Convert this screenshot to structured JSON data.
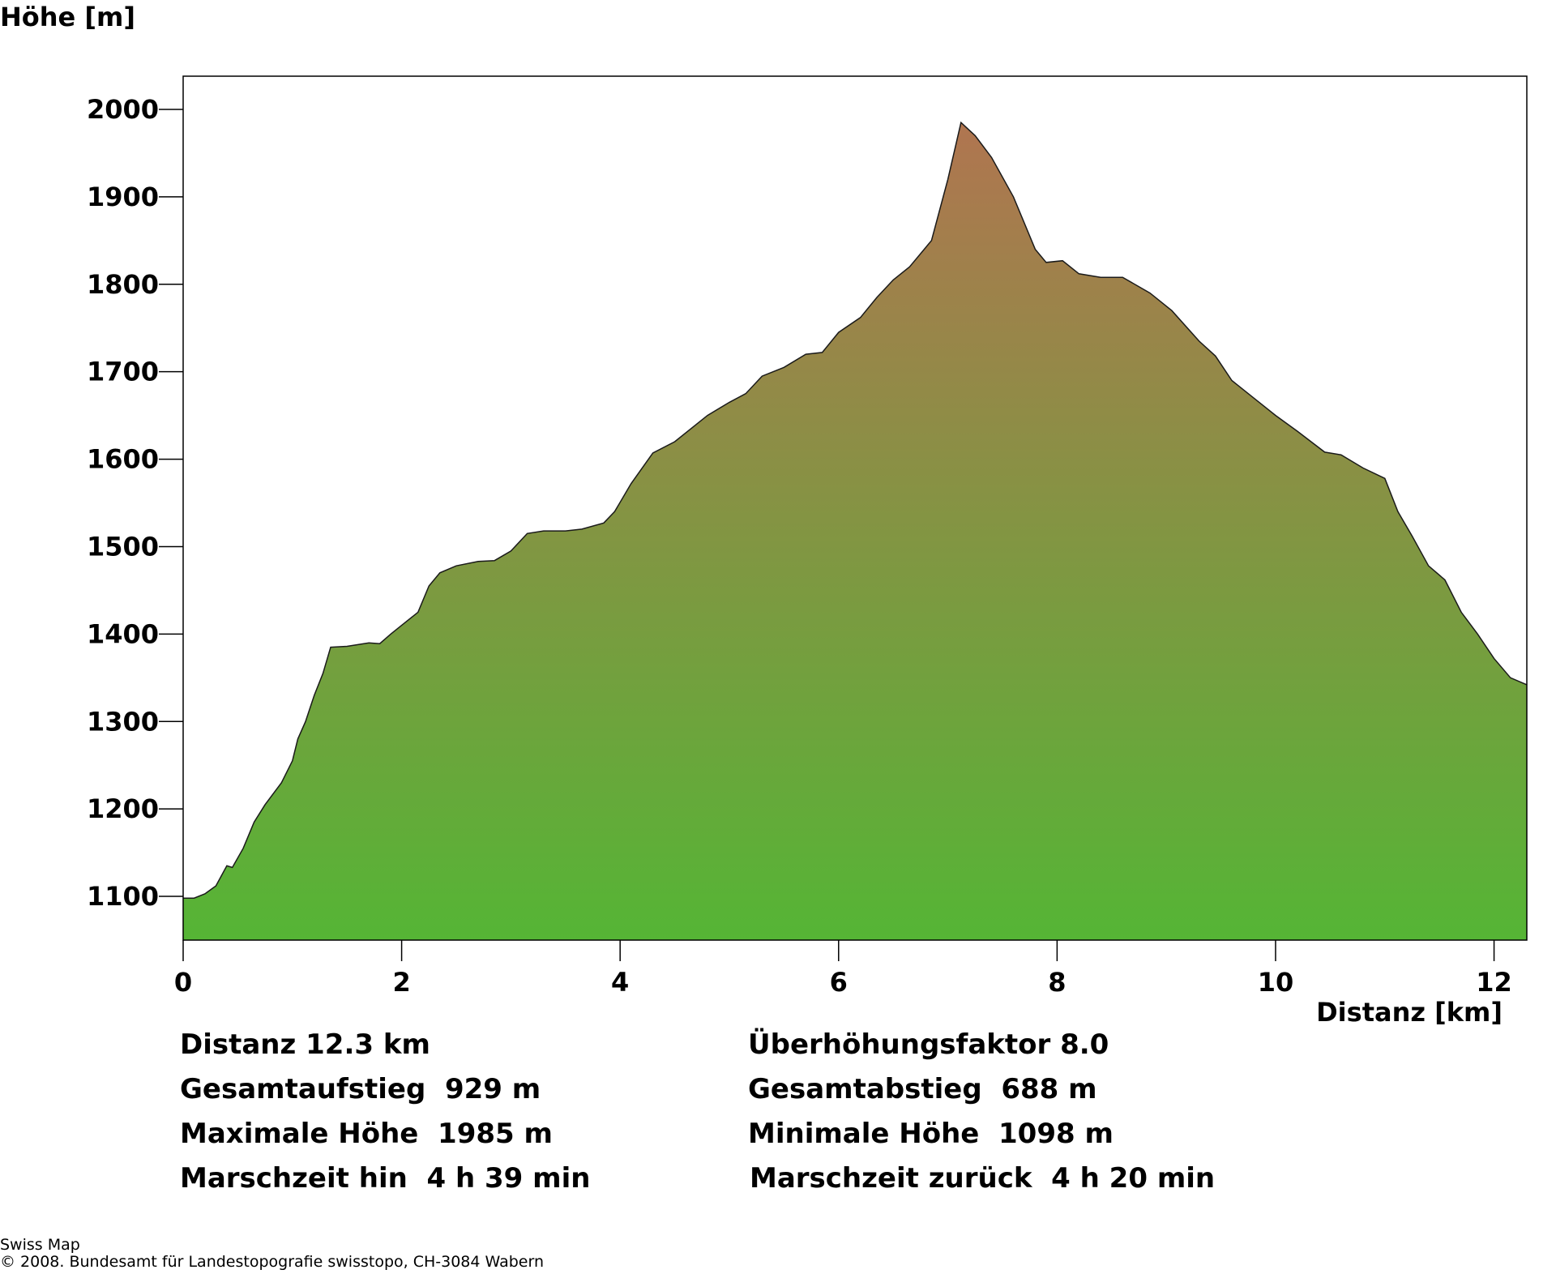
{
  "chart_data": {
    "type": "area",
    "title": "",
    "ylabel": "Höhe [m]",
    "xlabel": "Distanz [km]",
    "xlim": [
      0,
      12.3
    ],
    "ylim": [
      1050,
      2038
    ],
    "xticks": [
      "0",
      "2",
      "4",
      "6",
      "8",
      "10",
      "12"
    ],
    "yticks": [
      "1100",
      "1200",
      "1300",
      "1400",
      "1500",
      "1600",
      "1700",
      "1800",
      "1900",
      "2000"
    ],
    "gradient_colors": {
      "top": "#b07550",
      "bottom": "#55b535"
    },
    "grid": false,
    "profile": [
      [
        0,
        1098
      ],
      [
        0.1,
        1098
      ],
      [
        0.2,
        1103
      ],
      [
        0.3,
        1112
      ],
      [
        0.4,
        1135
      ],
      [
        0.45,
        1133
      ],
      [
        0.55,
        1155
      ],
      [
        0.65,
        1185
      ],
      [
        0.75,
        1205
      ],
      [
        0.9,
        1230
      ],
      [
        1.0,
        1255
      ],
      [
        1.05,
        1280
      ],
      [
        1.12,
        1300
      ],
      [
        1.2,
        1330
      ],
      [
        1.28,
        1355
      ],
      [
        1.35,
        1385
      ],
      [
        1.5,
        1386
      ],
      [
        1.7,
        1390
      ],
      [
        1.8,
        1389
      ],
      [
        1.9,
        1400
      ],
      [
        2.0,
        1410
      ],
      [
        2.15,
        1425
      ],
      [
        2.25,
        1455
      ],
      [
        2.35,
        1470
      ],
      [
        2.5,
        1478
      ],
      [
        2.7,
        1483
      ],
      [
        2.85,
        1484
      ],
      [
        3.0,
        1495
      ],
      [
        3.15,
        1515
      ],
      [
        3.3,
        1518
      ],
      [
        3.5,
        1518
      ],
      [
        3.65,
        1520
      ],
      [
        3.85,
        1527
      ],
      [
        3.95,
        1540
      ],
      [
        4.1,
        1572
      ],
      [
        4.3,
        1607
      ],
      [
        4.5,
        1620
      ],
      [
        4.8,
        1650
      ],
      [
        5.0,
        1665
      ],
      [
        5.15,
        1675
      ],
      [
        5.3,
        1695
      ],
      [
        5.5,
        1705
      ],
      [
        5.7,
        1720
      ],
      [
        5.85,
        1722
      ],
      [
        6.0,
        1745
      ],
      [
        6.2,
        1762
      ],
      [
        6.35,
        1785
      ],
      [
        6.5,
        1805
      ],
      [
        6.65,
        1820
      ],
      [
        6.85,
        1850
      ],
      [
        7.0,
        1920
      ],
      [
        7.12,
        1985
      ],
      [
        7.25,
        1970
      ],
      [
        7.4,
        1945
      ],
      [
        7.6,
        1900
      ],
      [
        7.8,
        1840
      ],
      [
        7.9,
        1825
      ],
      [
        8.05,
        1827
      ],
      [
        8.2,
        1812
      ],
      [
        8.4,
        1808
      ],
      [
        8.6,
        1808
      ],
      [
        8.85,
        1790
      ],
      [
        9.05,
        1770
      ],
      [
        9.3,
        1735
      ],
      [
        9.45,
        1718
      ],
      [
        9.6,
        1690
      ],
      [
        9.8,
        1670
      ],
      [
        10.0,
        1650
      ],
      [
        10.2,
        1632
      ],
      [
        10.45,
        1608
      ],
      [
        10.6,
        1605
      ],
      [
        10.8,
        1590
      ],
      [
        11.0,
        1578
      ],
      [
        11.12,
        1540
      ],
      [
        11.25,
        1512
      ],
      [
        11.4,
        1478
      ],
      [
        11.55,
        1462
      ],
      [
        11.7,
        1425
      ],
      [
        11.85,
        1400
      ],
      [
        12.0,
        1372
      ],
      [
        12.15,
        1350
      ],
      [
        12.3,
        1342
      ]
    ]
  },
  "stats": {
    "distanz": "Distanz 12.3 km",
    "ueberhoehung": "Überhöhungsfaktor 8.0",
    "aufstieg": "Gesamtaufstieg  929 m",
    "abstieg": "Gesamtabstieg  688 m",
    "max_hoehe": "Maximale Höhe  1985 m",
    "min_hoehe": "Minimale Höhe  1098 m",
    "zeit_hin": "Marschzeit hin  4 h 39 min",
    "zeit_zurueck": "Marschzeit zurück  4 h 20 min"
  },
  "footer": {
    "line1": "Swiss Map",
    "line2": "© 2008. Bundesamt für Landestopografie swisstopo, CH-3084 Wabern"
  }
}
